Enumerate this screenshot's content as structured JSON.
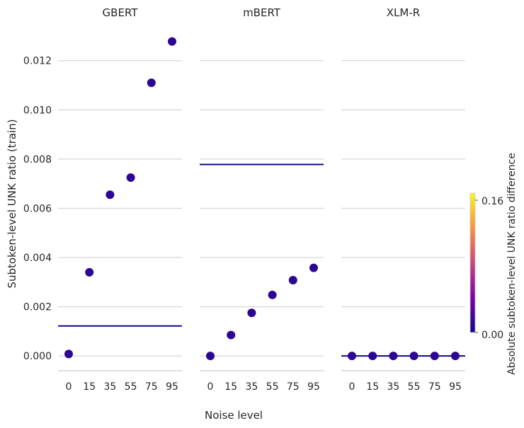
{
  "chart_data": {
    "type": "scatter",
    "x_label": "Noise level",
    "y_label": "Subtoken-level UNK ratio (train)",
    "colorbar_label": "Absolute subtoken-level UNK ratio difference",
    "colorbar_ticks": [
      "0.00",
      "0.16"
    ],
    "colorbar_range": [
      0,
      0.16
    ],
    "ylim": [
      -0.0006,
      0.0132
    ],
    "y_ticks": [
      0.0,
      0.002,
      0.004,
      0.006,
      0.008,
      0.01,
      0.012
    ],
    "y_tick_labels": [
      "0.000",
      "0.002",
      "0.004",
      "0.006",
      "0.008",
      "0.010",
      "0.012"
    ],
    "categories": [
      "0",
      "15",
      "35",
      "55",
      "75",
      "95"
    ],
    "grid": true,
    "colors": {
      "points": "#2c0594",
      "reference_line": "#0d0887",
      "grid": "#cccccc"
    },
    "panels": [
      {
        "title": "GBERT",
        "reference": 0.00122,
        "values": [
          8e-05,
          0.0034,
          0.00655,
          0.00725,
          0.0111,
          0.01278
        ]
      },
      {
        "title": "mBERT",
        "reference": 0.00778,
        "values": [
          0.0,
          0.00085,
          0.00175,
          0.00248,
          0.00308,
          0.00358
        ]
      },
      {
        "title": "XLM-R",
        "reference": 0.0,
        "values": [
          0.0,
          0.0,
          0.0,
          0.0,
          0.0,
          0.0
        ]
      }
    ]
  }
}
